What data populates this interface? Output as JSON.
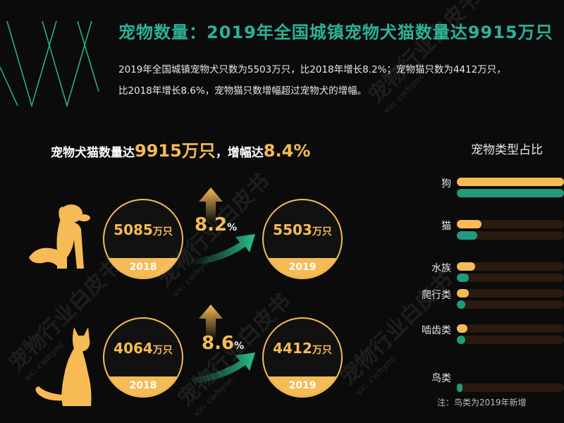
{
  "header": {
    "title": "宠物数量：2019年全国城镇宠物犬猫数量达9915万只",
    "intro_line1": "2019年全国城镇宠物犬只数为5503万只，比2018年增长8.2%；宠物猫只数为4412万只，",
    "intro_line2": "比2018年增长8.6%，宠物猫只数增幅超过宠物犬的增幅。"
  },
  "summary": {
    "prefix": "宠物犬猫数量达",
    "total": "9915万只",
    "mid": "，增幅达",
    "growth": "8.4%"
  },
  "dog": {
    "v2018": "5085",
    "v2019": "5503",
    "unit": "万只",
    "y2018": "2018",
    "y2019": "2019",
    "growth": "8.2",
    "pct": "%"
  },
  "cat": {
    "v2018": "4064",
    "v2019": "4412",
    "unit": "万只",
    "y2018": "2018",
    "y2019": "2019",
    "growth": "8.6",
    "pct": "%"
  },
  "colors": {
    "accent_orange": "#f6bb55",
    "accent_green": "#2bb396",
    "bar_green": "#1f9a7d",
    "background": "#0b0b0b"
  },
  "watermark": {
    "text": "宠物行业白皮书",
    "sub": "vx: cwhync"
  },
  "chart_data": {
    "type": "bar",
    "orientation": "horizontal",
    "title": "宠物类型占比",
    "categories": [
      "狗",
      "猫",
      "水族",
      "爬行类",
      "啮齿类",
      "鸟类"
    ],
    "series": [
      {
        "color": "#f6bb55",
        "values": [
          100,
          23,
          17,
          11,
          10,
          null
        ]
      },
      {
        "color": "#1f9a7d",
        "values": [
          100,
          19,
          11,
          8,
          8,
          5
        ]
      }
    ],
    "xlim": [
      0,
      100
    ],
    "note": "注：鸟类为2019年新增"
  }
}
